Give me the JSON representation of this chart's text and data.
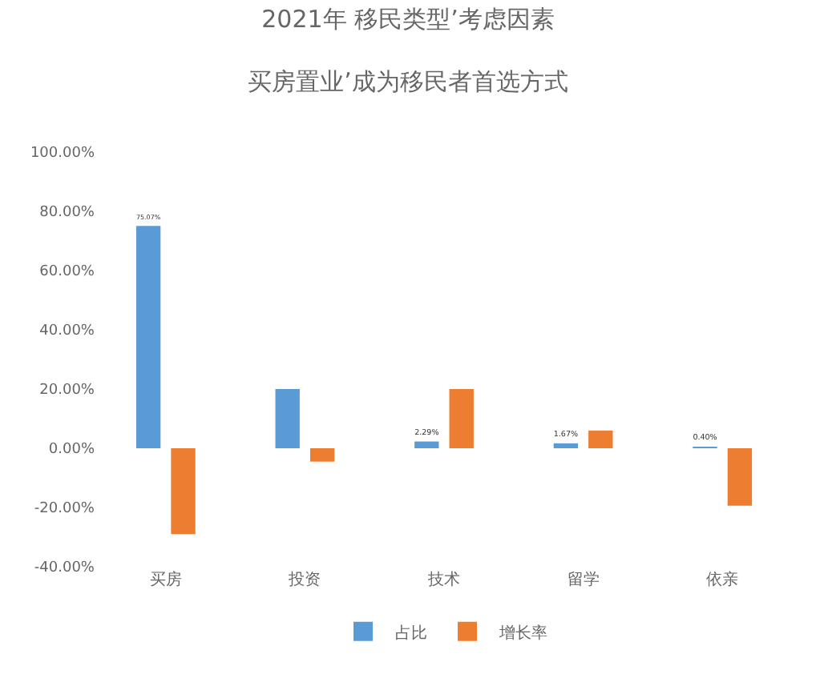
{
  "chart_data": {
    "type": "bar",
    "title": "2021年 移民类型’考虑因素",
    "subtitle": "买房置业’成为移民者首选方式",
    "categories": [
      "买房",
      "投资",
      "技术",
      "留学",
      "依亲"
    ],
    "series": [
      {
        "name": "占比",
        "color": "#5b9bd5",
        "values": [
          75.07,
          20,
          2.29,
          1.67,
          0.4
        ],
        "value_labels": [
          "75.07%",
          null,
          "2.29%",
          "1.67%",
          "0.40%"
        ]
      },
      {
        "name": "增长率",
        "color": "#ed7d31",
        "values": [
          -29,
          -4.5,
          20,
          6,
          -19.4
        ]
      }
    ],
    "ylim": [
      -40,
      100
    ],
    "yticks": [
      {
        "value": -40,
        "label": "-40.00%"
      },
      {
        "value": -20,
        "label": "-20.00%"
      },
      {
        "value": 0,
        "label": "0.00%"
      },
      {
        "value": 20,
        "label": "20.00%"
      },
      {
        "value": 40,
        "label": "40.00%"
      },
      {
        "value": 60,
        "label": "60.00%"
      },
      {
        "value": 80,
        "label": "80.00%"
      },
      {
        "value": 100,
        "label": "100.00%"
      }
    ],
    "grid": false,
    "legend": "bottom"
  }
}
